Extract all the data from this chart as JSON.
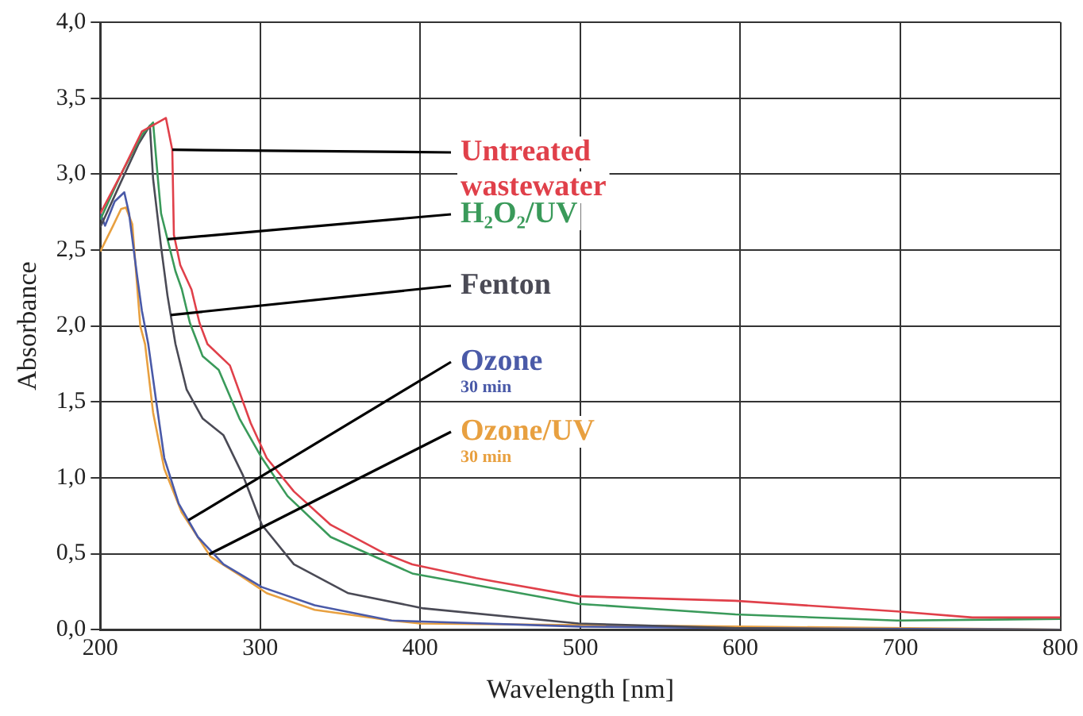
{
  "chart_data": {
    "type": "line",
    "xlabel": "Wavelength [nm]",
    "ylabel": "Absorbance",
    "xlim": [
      200,
      800
    ],
    "xticks": [
      200,
      300,
      400,
      500,
      600,
      700,
      800
    ],
    "ylim": [
      0,
      4
    ],
    "yticks": [
      {
        "value": 0,
        "label": "0,0"
      },
      {
        "value": 0.5,
        "label": "0,5"
      },
      {
        "value": 1,
        "label": "1,0"
      },
      {
        "value": 1.5,
        "label": "1,5"
      },
      {
        "value": 2,
        "label": "2,0"
      },
      {
        "value": 2.5,
        "label": "2,5"
      },
      {
        "value": 3,
        "label": "3,0"
      },
      {
        "value": 3.5,
        "label": "3,5"
      },
      {
        "value": 4,
        "label": "4,0"
      }
    ],
    "grid": true,
    "legend": false,
    "series": [
      {
        "name": "Untreated\nwastewater",
        "color": "#e0404a",
        "x": [
          200,
          213,
          226,
          241,
          245,
          246,
          250,
          257,
          262,
          267,
          281,
          294,
          304,
          321,
          344,
          378,
          395,
          435,
          445,
          499,
          597,
          698,
          745,
          800
        ],
        "values": [
          2.74,
          3.0,
          3.28,
          3.37,
          3.16,
          2.6,
          2.4,
          2.24,
          2.02,
          1.88,
          1.74,
          1.36,
          1.13,
          0.91,
          0.69,
          0.5,
          0.43,
          0.34,
          0.32,
          0.22,
          0.19,
          0.12,
          0.08,
          0.08
        ]
      },
      {
        "name": "H₂O₂/UV",
        "color": "#3a9a5a",
        "x": [
          200,
          213,
          226,
          233,
          236,
          238,
          247,
          251,
          256,
          264,
          274,
          287,
          301,
          317,
          344,
          395,
          499,
          597,
          698,
          800
        ],
        "values": [
          2.7,
          3.0,
          3.26,
          3.34,
          2.97,
          2.74,
          2.36,
          2.24,
          2.02,
          1.8,
          1.71,
          1.39,
          1.13,
          0.88,
          0.61,
          0.37,
          0.17,
          0.1,
          0.06,
          0.07
        ]
      },
      {
        "name": "Fenton",
        "color": "#4a4a55",
        "x": [
          200,
          213,
          224,
          231,
          233,
          238,
          242,
          247,
          254,
          264,
          277,
          289,
          301,
          321,
          355,
          402,
          499,
          597,
          700,
          800
        ],
        "values": [
          2.65,
          2.95,
          3.2,
          3.32,
          2.97,
          2.52,
          2.2,
          1.88,
          1.58,
          1.39,
          1.28,
          1.02,
          0.69,
          0.43,
          0.24,
          0.14,
          0.04,
          0.01,
          0.0,
          0.0
        ]
      },
      {
        "name": "Ozone\n30 min",
        "color": "#4a5aa8",
        "x": [
          200,
          203,
          209,
          215,
          218,
          223,
          226,
          230,
          235,
          240,
          249,
          261,
          277,
          301,
          334,
          382,
          500,
          600,
          800
        ],
        "values": [
          2.74,
          2.66,
          2.82,
          2.88,
          2.74,
          2.33,
          2.1,
          1.88,
          1.5,
          1.13,
          0.83,
          0.61,
          0.43,
          0.28,
          0.16,
          0.06,
          0.02,
          0.01,
          0.0
        ]
      },
      {
        "name": "Ozone/UV\n30 min",
        "color": "#e8a040",
        "x": [
          200,
          208,
          213,
          216,
          220,
          225,
          228,
          233,
          240,
          251,
          269,
          287,
          304,
          334,
          382,
          400,
          600,
          800
        ],
        "values": [
          2.49,
          2.66,
          2.77,
          2.78,
          2.67,
          2.0,
          1.88,
          1.43,
          1.06,
          0.77,
          0.48,
          0.36,
          0.24,
          0.13,
          0.06,
          0.04,
          0.02,
          0.0
        ]
      }
    ]
  }
}
